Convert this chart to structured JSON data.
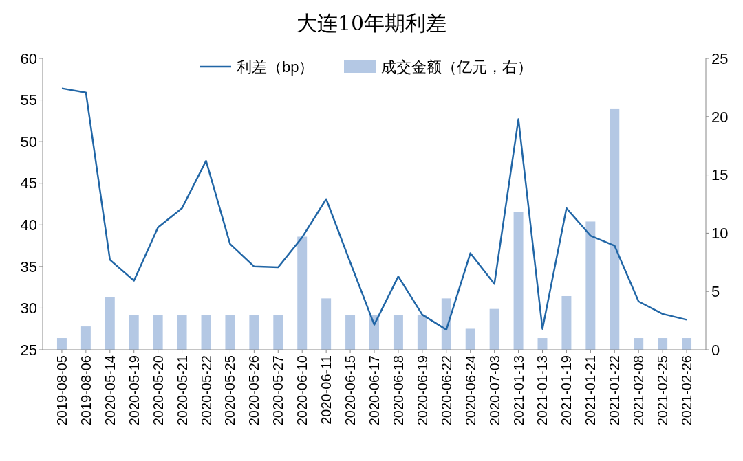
{
  "chart_data": {
    "type": "bar",
    "title": "大连10年期利差",
    "categories": [
      "2019-08-05",
      "2019-08-06",
      "2020-05-14",
      "2020-05-19",
      "2020-05-20",
      "2020-05-21",
      "2020-05-22",
      "2020-05-25",
      "2020-05-26",
      "2020-05-27",
      "2020-06-10",
      "2020-06-11",
      "2020-06-15",
      "2020-06-17",
      "2020-06-18",
      "2020-06-19",
      "2020-06-22",
      "2020-06-24",
      "2020-07-03",
      "2021-01-13",
      "2021-01-13",
      "2021-01-19",
      "2021-01-21",
      "2021-01-22",
      "2021-02-08",
      "2021-02-25",
      "2021-02-26"
    ],
    "series": [
      {
        "name": "利差（bp）",
        "type": "line",
        "color": "#2166a6",
        "values": [
          56.4,
          55.9,
          35.8,
          33.3,
          39.7,
          42.0,
          47.7,
          37.7,
          35.0,
          34.9,
          38.5,
          43.1,
          35.5,
          28.0,
          33.8,
          29.2,
          27.4,
          36.6,
          32.9,
          52.7,
          27.5,
          42.0,
          38.7,
          37.5,
          30.8,
          29.3,
          28.6
        ]
      },
      {
        "name": "成交金额（亿元，右）",
        "axis": "y2",
        "color": "#b4c8e4",
        "values": [
          1.0,
          2.0,
          4.5,
          3.0,
          3.0,
          3.0,
          3.0,
          3.0,
          3.0,
          3.0,
          9.7,
          4.4,
          3.0,
          3.0,
          3.0,
          3.0,
          4.4,
          1.8,
          3.5,
          11.8,
          1.0,
          4.6,
          11.0,
          20.7,
          1.0,
          1.0,
          1.0
        ]
      }
    ],
    "ylim": [
      25,
      60
    ],
    "yticks": [
      25,
      30,
      35,
      40,
      45,
      50,
      55,
      60
    ],
    "y2lim": [
      0,
      25
    ],
    "y2ticks": [
      0,
      5,
      10,
      15,
      20,
      25
    ],
    "legend": "top",
    "grid": false
  }
}
